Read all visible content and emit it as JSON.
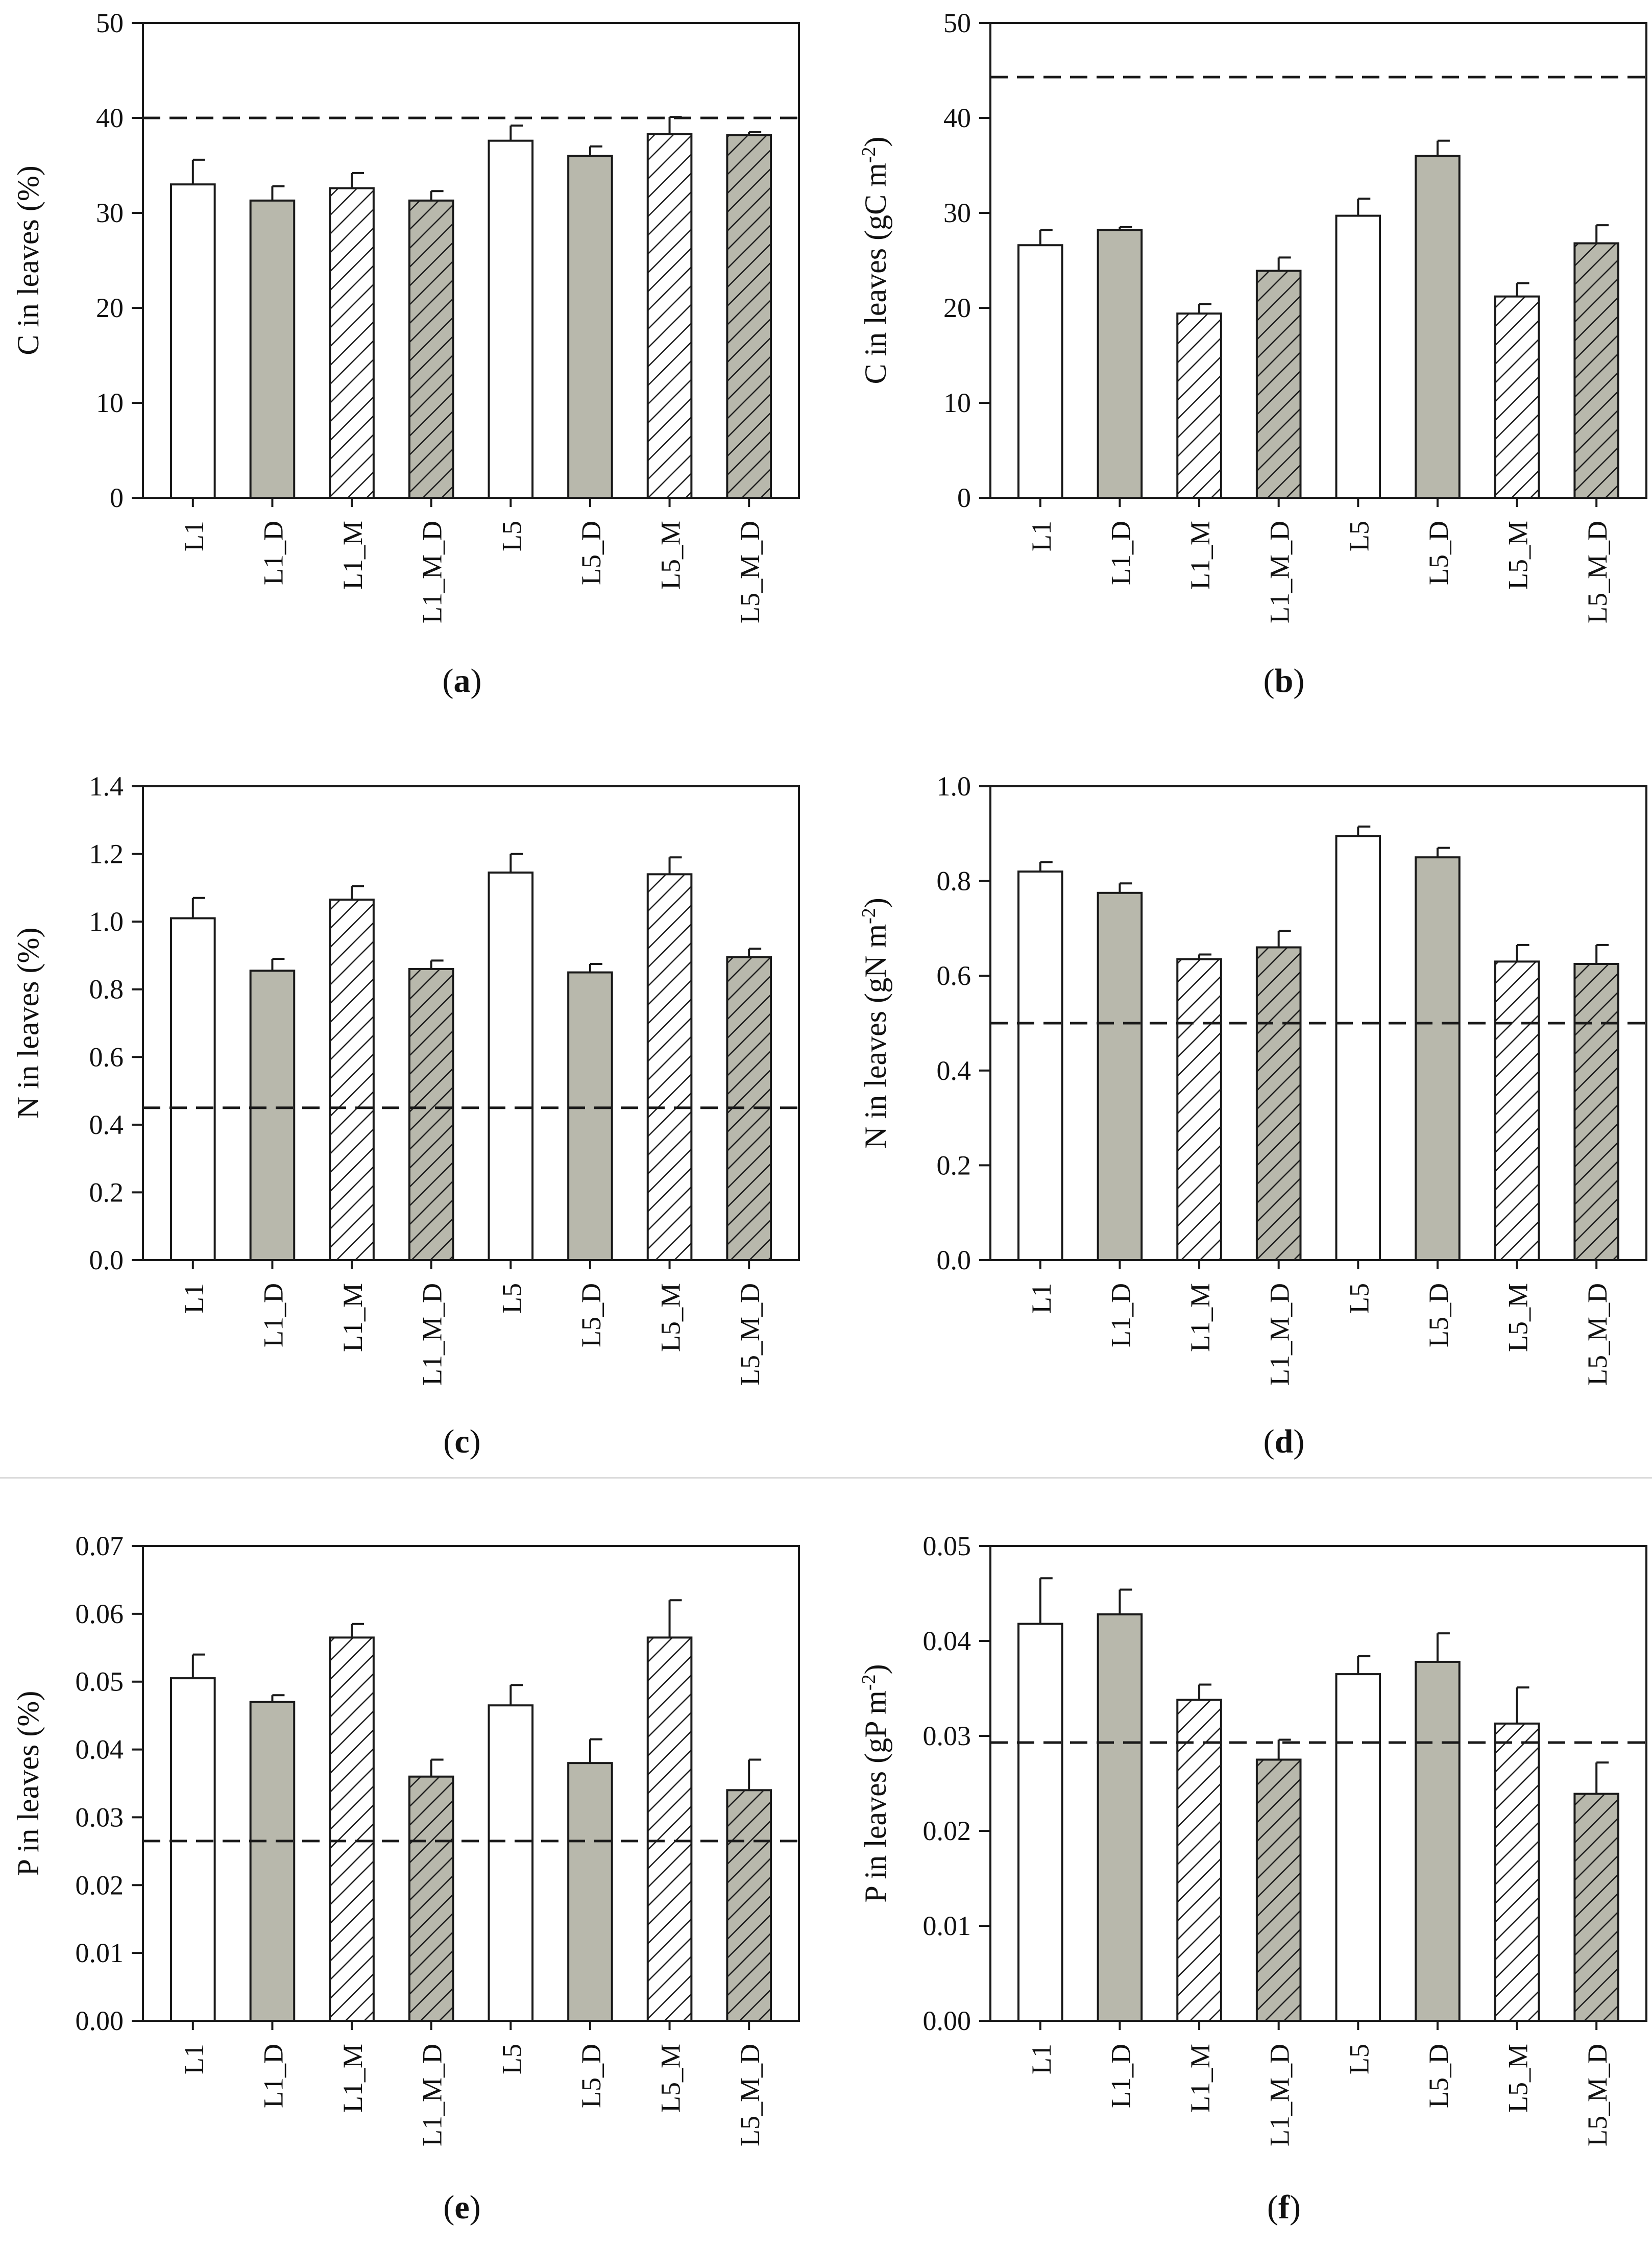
{
  "colors": {
    "axis": "#1a1a1a",
    "bar_plain": "#ffffff",
    "bar_drought": "#b8b8ac",
    "hatch": "#1a1a1a"
  },
  "chart_data": [
    {
      "id": "a",
      "type": "bar",
      "panel_label": "a",
      "ylabel": "C in leaves (%)",
      "ylim": [
        0,
        50
      ],
      "yticks": [
        "0",
        "10",
        "20",
        "30",
        "40",
        "50"
      ],
      "categories": [
        "L1",
        "L1_D",
        "L1_M",
        "L1_M_D",
        "L5",
        "L5_D",
        "L5_M",
        "L5_M_D"
      ],
      "values": [
        33.0,
        31.3,
        32.6,
        31.3,
        37.6,
        36.0,
        38.3,
        38.2
      ],
      "errors": [
        2.6,
        1.5,
        1.6,
        1.0,
        1.6,
        1.0,
        1.8,
        0.3
      ],
      "reference_line": 40
    },
    {
      "id": "b",
      "type": "bar",
      "panel_label": "b",
      "ylabel": "C in leaves (gC m",
      "ylabel_sup": "-2",
      "ylabel_end": ")",
      "ylim": [
        0,
        50
      ],
      "yticks": [
        "0",
        "10",
        "20",
        "30",
        "40",
        "50"
      ],
      "categories": [
        "L1",
        "L1_D",
        "L1_M",
        "L1_M_D",
        "L5",
        "L5_D",
        "L5_M",
        "L5_M_D"
      ],
      "values": [
        26.6,
        28.2,
        19.4,
        23.9,
        29.7,
        36.0,
        21.2,
        26.8
      ],
      "errors": [
        1.6,
        0.3,
        1.0,
        1.4,
        1.8,
        1.6,
        1.4,
        1.9
      ],
      "reference_line": 44.3
    },
    {
      "id": "c",
      "type": "bar",
      "panel_label": "c",
      "ylabel": "N in leaves (%)",
      "ylim": [
        0,
        1.4
      ],
      "yticks": [
        "0.0",
        "0.2",
        "0.4",
        "0.6",
        "0.8",
        "1.0",
        "1.2",
        "1.4"
      ],
      "categories": [
        "L1",
        "L1_D",
        "L1_M",
        "L1_M_D",
        "L5",
        "L5_D",
        "L5_M",
        "L5_M_D"
      ],
      "values": [
        1.01,
        0.855,
        1.065,
        0.86,
        1.145,
        0.85,
        1.14,
        0.895
      ],
      "errors": [
        0.06,
        0.035,
        0.04,
        0.025,
        0.055,
        0.025,
        0.05,
        0.025
      ],
      "reference_line": 0.45
    },
    {
      "id": "d",
      "type": "bar",
      "panel_label": "d",
      "ylabel": "N in leaves (gN m",
      "ylabel_sup": "-2",
      "ylabel_end": ")",
      "ylim": [
        0,
        1.0
      ],
      "yticks": [
        "0.0",
        "0.2",
        "0.4",
        "0.6",
        "0.8",
        "1.0"
      ],
      "categories": [
        "L1",
        "L1_D",
        "L1_M",
        "L1_M_D",
        "L5",
        "L5_D",
        "L5_M",
        "L5_M_D"
      ],
      "values": [
        0.82,
        0.775,
        0.635,
        0.66,
        0.895,
        0.85,
        0.63,
        0.625
      ],
      "errors": [
        0.02,
        0.02,
        0.01,
        0.035,
        0.02,
        0.02,
        0.035,
        0.04
      ],
      "reference_line": 0.5
    },
    {
      "id": "e",
      "type": "bar",
      "panel_label": "e",
      "ylabel": "P in leaves (%)",
      "ylim": [
        0,
        0.07
      ],
      "yticks": [
        "0.00",
        "0.01",
        "0.02",
        "0.03",
        "0.04",
        "0.05",
        "0.06",
        "0.07"
      ],
      "categories": [
        "L1",
        "L1_D",
        "L1_M",
        "L1_M_D",
        "L5",
        "L5_D",
        "L5_M",
        "L5_M_D"
      ],
      "values": [
        0.0505,
        0.047,
        0.0565,
        0.036,
        0.0465,
        0.038,
        0.0565,
        0.034
      ],
      "errors": [
        0.0035,
        0.001,
        0.002,
        0.0025,
        0.003,
        0.0035,
        0.0055,
        0.0045
      ],
      "reference_line": 0.0265
    },
    {
      "id": "f",
      "type": "bar",
      "panel_label": "f",
      "ylabel": "P in leaves (gP m",
      "ylabel_sup": "-2",
      "ylabel_end": ")",
      "ylim": [
        0,
        0.05
      ],
      "yticks": [
        "0.00",
        "0.01",
        "0.02",
        "0.03",
        "0.04",
        "0.05"
      ],
      "categories": [
        "L1",
        "L1_D",
        "L1_M",
        "L1_M_D",
        "L5",
        "L5_D",
        "L5_M",
        "L5_M_D"
      ],
      "values": [
        0.0418,
        0.0428,
        0.0338,
        0.0275,
        0.0365,
        0.0378,
        0.0313,
        0.0239
      ],
      "errors": [
        0.0048,
        0.0026,
        0.0016,
        0.0021,
        0.0019,
        0.003,
        0.0038,
        0.0033
      ],
      "reference_line": 0.0293
    }
  ],
  "bar_styles": [
    "plain",
    "drought",
    "hatched",
    "drought-hatched",
    "plain",
    "drought",
    "hatched",
    "drought-hatched"
  ]
}
